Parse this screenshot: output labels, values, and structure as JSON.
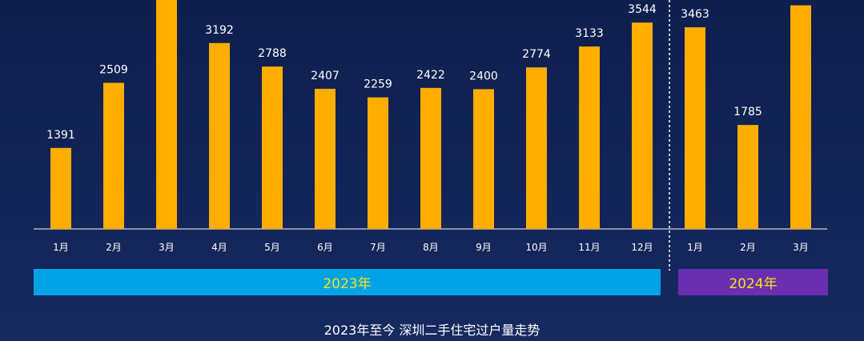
{
  "chart_data": {
    "type": "bar",
    "title": "2023年至今 深圳二手住宅过户量走势",
    "categories": [
      "1月",
      "2月",
      "3月",
      "4月",
      "5月",
      "6月",
      "7月",
      "8月",
      "9月",
      "10月",
      "11月",
      "12月",
      "1月",
      "2月",
      "3月"
    ],
    "values": [
      1391,
      2509,
      3949,
      3192,
      2788,
      2407,
      2259,
      2422,
      2400,
      2774,
      3133,
      3544,
      3463,
      1785,
      3840
    ],
    "groups": [
      {
        "label": "2023年",
        "color": "#00a3e6"
      },
      {
        "label": "2024年",
        "color": "#6a2fb0"
      }
    ],
    "group_sizes": [
      12,
      3
    ],
    "ylim": [
      0,
      4000
    ],
    "bar_color": "#ffae00",
    "xlabel": "",
    "ylabel": ""
  }
}
